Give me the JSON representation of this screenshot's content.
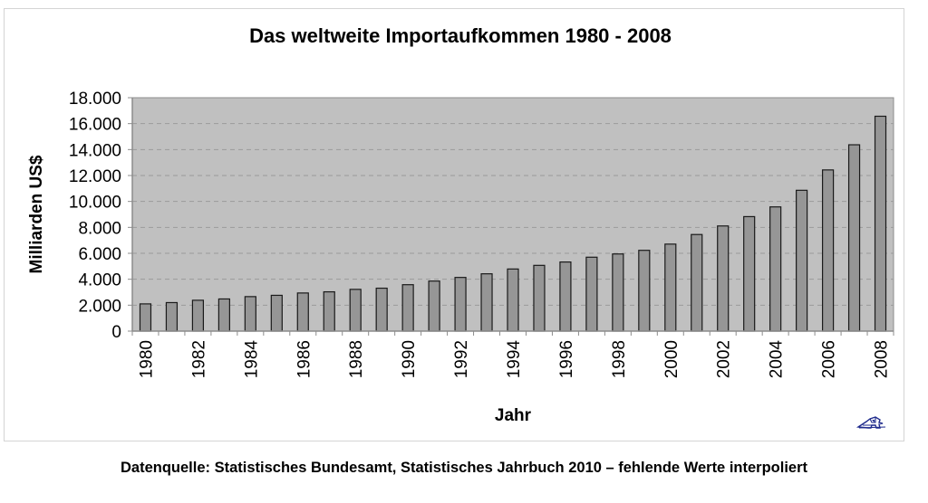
{
  "chart_data": {
    "type": "bar",
    "title": "Das weltweite Importaufkommen 1980 - 2008",
    "xlabel": "Jahr",
    "ylabel": "Milliarden US$",
    "ylim": [
      0,
      18000
    ],
    "yticks": [
      0,
      2000,
      4000,
      6000,
      8000,
      10000,
      12000,
      14000,
      16000,
      18000
    ],
    "ytick_labels": [
      "0",
      "2.000",
      "4.000",
      "6.000",
      "8.000",
      "10.000",
      "12.000",
      "14.000",
      "16.000",
      "18.000"
    ],
    "grid": "horizontal dashed",
    "legend": "none",
    "categories": [
      "1980",
      "1981",
      "1982",
      "1983",
      "1984",
      "1985",
      "1986",
      "1987",
      "1988",
      "1989",
      "1990",
      "1991",
      "1992",
      "1993",
      "1994",
      "1995",
      "1996",
      "1997",
      "1998",
      "1999",
      "2000",
      "2001",
      "2002",
      "2003",
      "2004",
      "2005",
      "2006",
      "2007",
      "2008"
    ],
    "xtick_labels_shown": [
      "1980",
      "1982",
      "1984",
      "1986",
      "1988",
      "1990",
      "1992",
      "1994",
      "1996",
      "1998",
      "2000",
      "2002",
      "2004",
      "2006",
      "2008"
    ],
    "series": [
      {
        "name": "Importaufkommen",
        "values": [
          2100,
          2200,
          2380,
          2480,
          2660,
          2760,
          2940,
          3030,
          3220,
          3310,
          3580,
          3860,
          4140,
          4420,
          4790,
          5070,
          5330,
          5700,
          5950,
          6230,
          6710,
          7450,
          8110,
          8830,
          9580,
          10860,
          12430,
          14370,
          16570
        ]
      }
    ],
    "colors": {
      "plot_background": "#c0c0c0",
      "bar_fill": "#969696",
      "bar_stroke": "#1a1a1a",
      "gridline": "#9a9a9a"
    }
  },
  "caption": "Datenquelle: Statistisches Bundesamt, Statistisches Jahrbuch 2010 – fehlende Werte interpoliert",
  "logo_icon": "house-logo-icon"
}
